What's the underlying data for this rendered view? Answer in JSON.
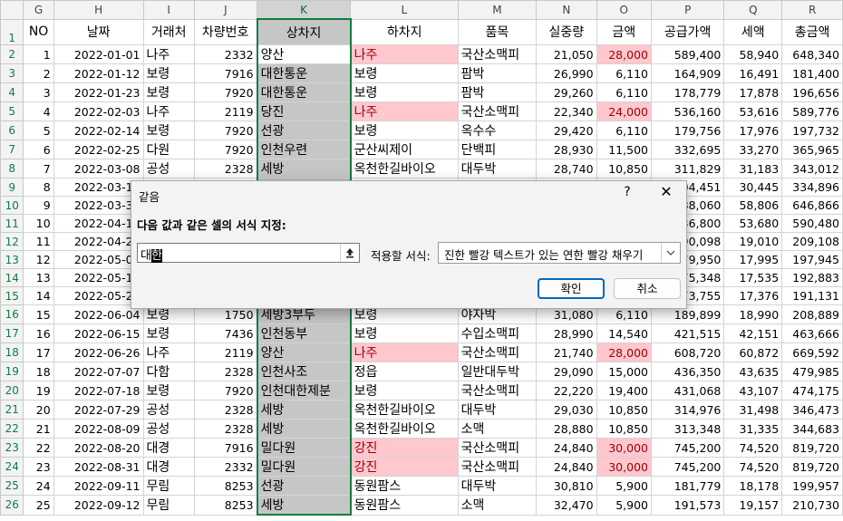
{
  "columns": [
    "G",
    "H",
    "I",
    "J",
    "K",
    "L",
    "M",
    "N",
    "O",
    "P",
    "Q",
    "R"
  ],
  "header_row": {
    "num": "1",
    "cells": [
      "NO",
      "날짜",
      "거래처",
      "차량번호",
      "상차지",
      "하차지",
      "품목",
      "실중량",
      "금액",
      "공급가액",
      "세액",
      "총금액"
    ]
  },
  "rows": [
    {
      "n": "2",
      "c": [
        "1",
        "2022-01-01",
        "나주",
        "2332",
        "양산",
        "나주",
        "국산소맥피",
        "21,050",
        "28,000",
        "589,400",
        "58,940",
        "648,340"
      ]
    },
    {
      "n": "3",
      "c": [
        "2",
        "2022-01-12",
        "보령",
        "7916",
        "대한통운",
        "보령",
        "팜박",
        "26,990",
        "6,110",
        "164,909",
        "16,491",
        "181,400"
      ]
    },
    {
      "n": "4",
      "c": [
        "3",
        "2022-01-23",
        "보령",
        "7920",
        "대한통운",
        "보령",
        "팜박",
        "29,260",
        "6,110",
        "178,779",
        "17,878",
        "196,656"
      ]
    },
    {
      "n": "5",
      "c": [
        "4",
        "2022-02-03",
        "나주",
        "2119",
        "당진",
        "나주",
        "국산소맥피",
        "22,340",
        "24,000",
        "536,160",
        "53,616",
        "589,776"
      ]
    },
    {
      "n": "6",
      "c": [
        "5",
        "2022-02-14",
        "보령",
        "7920",
        "선광",
        "보령",
        "옥수수",
        "29,420",
        "6,110",
        "179,756",
        "17,976",
        "197,732"
      ]
    },
    {
      "n": "7",
      "c": [
        "6",
        "2022-02-25",
        "다원",
        "7920",
        "인천우련",
        "군산씨제이",
        "단백피",
        "28,930",
        "11,500",
        "332,695",
        "33,270",
        "365,965"
      ]
    },
    {
      "n": "8",
      "c": [
        "7",
        "2022-03-08",
        "공성",
        "2328",
        "세방",
        "옥천한길바이오",
        "대두박",
        "28,740",
        "10,850",
        "311,829",
        "31,183",
        "343,012"
      ]
    },
    {
      "n": "9",
      "c": [
        "8",
        "2022-03-19",
        "",
        "",
        "",
        "",
        "",
        "",
        "",
        "304,451",
        "30,445",
        "334,896"
      ]
    },
    {
      "n": "10",
      "c": [
        "9",
        "2022-03-30",
        "",
        "",
        "",
        "",
        "",
        "",
        "",
        "588,060",
        "58,806",
        "646,866"
      ]
    },
    {
      "n": "11",
      "c": [
        "10",
        "2022-04-10",
        "",
        "",
        "",
        "",
        "",
        "",
        "",
        "536,800",
        "53,680",
        "590,480"
      ]
    },
    {
      "n": "12",
      "c": [
        "11",
        "2022-04-21",
        "",
        "",
        "",
        "",
        "",
        "",
        "",
        "190,098",
        "19,010",
        "209,108"
      ]
    },
    {
      "n": "13",
      "c": [
        "12",
        "2022-05-02",
        "",
        "",
        "",
        "",
        "",
        "",
        "",
        "179,950",
        "17,995",
        "197,945"
      ]
    },
    {
      "n": "14",
      "c": [
        "13",
        "2022-05-13",
        "",
        "",
        "",
        "",
        "",
        "",
        "",
        "175,348",
        "17,535",
        "192,883"
      ]
    },
    {
      "n": "15",
      "c": [
        "14",
        "2022-05-24",
        "",
        "",
        "",
        "",
        "",
        "",
        "",
        "173,755",
        "17,376",
        "191,131"
      ]
    },
    {
      "n": "16",
      "c": [
        "15",
        "2022-06-04",
        "보령",
        "1750",
        "세방3부두",
        "보령",
        "야자박",
        "31,080",
        "6,110",
        "189,899",
        "18,990",
        "208,889"
      ]
    },
    {
      "n": "17",
      "c": [
        "16",
        "2022-06-15",
        "보령",
        "7436",
        "인천동부",
        "보령",
        "수입소맥피",
        "28,990",
        "14,540",
        "421,515",
        "42,151",
        "463,666"
      ]
    },
    {
      "n": "18",
      "c": [
        "17",
        "2022-06-26",
        "나주",
        "2119",
        "양산",
        "나주",
        "국산소맥피",
        "21,740",
        "28,000",
        "608,720",
        "60,872",
        "669,592"
      ]
    },
    {
      "n": "19",
      "c": [
        "18",
        "2022-07-07",
        "다함",
        "2328",
        "인천사조",
        "정읍",
        "일반대두박",
        "29,090",
        "15,000",
        "436,350",
        "43,635",
        "479,985"
      ]
    },
    {
      "n": "20",
      "c": [
        "19",
        "2022-07-18",
        "보령",
        "7920",
        "인천대한제분",
        "보령",
        "국산소맥피",
        "22,220",
        "19,400",
        "431,068",
        "43,107",
        "474,175"
      ]
    },
    {
      "n": "21",
      "c": [
        "20",
        "2022-07-29",
        "공성",
        "2328",
        "세방",
        "옥천한길바이오",
        "대두박",
        "29,030",
        "10,850",
        "314,976",
        "31,498",
        "346,473"
      ]
    },
    {
      "n": "22",
      "c": [
        "21",
        "2022-08-09",
        "공성",
        "2328",
        "세방",
        "옥천한길바이오",
        "소맥",
        "28,880",
        "10,850",
        "313,348",
        "31,335",
        "344,683"
      ]
    },
    {
      "n": "23",
      "c": [
        "22",
        "2022-08-20",
        "대경",
        "7916",
        "밀다원",
        "강진",
        "국산소맥피",
        "24,840",
        "30,000",
        "745,200",
        "74,520",
        "819,720"
      ]
    },
    {
      "n": "24",
      "c": [
        "23",
        "2022-08-31",
        "대경",
        "2332",
        "밀다원",
        "강진",
        "국산소맥피",
        "24,840",
        "30,000",
        "745,200",
        "74,520",
        "819,720"
      ]
    },
    {
      "n": "25",
      "c": [
        "24",
        "2022-09-11",
        "무림",
        "8253",
        "선광",
        "동원팜스",
        "대두박",
        "30,810",
        "5,900",
        "181,779",
        "18,178",
        "199,957"
      ]
    },
    {
      "n": "26",
      "c": [
        "25",
        "2022-09-12",
        "무림",
        "8253",
        "세방",
        "동원팜스",
        "소맥",
        "32,470",
        "5,900",
        "191,573",
        "19,157",
        "210,730"
      ]
    }
  ],
  "highlight_rows": [
    "2",
    "5",
    "18",
    "23",
    "24"
  ],
  "highlight_color": "#ffc7ce",
  "highlight_text_color": "#9c0006",
  "selection_color": "#107c41",
  "dialog": {
    "title": "같음",
    "help": "?",
    "close": "✕",
    "label": "다음 값과 같은 셀의 서식 지정:",
    "input_value": "대",
    "input_caret_text": "한",
    "ref_icon": "range-select-icon",
    "format_label": "적용할 서식:",
    "format_value": "진한 빨강 텍스트가 있는 연한 빨강 채우기",
    "ok": "확인",
    "cancel": "취소"
  }
}
